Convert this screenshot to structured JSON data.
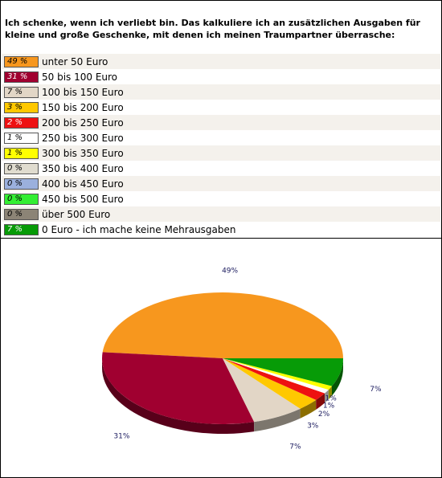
{
  "question": "Ich schenke, wenn ich verliebt bin. Das kalkuliere ich an zusätzlichen Ausgaben für kleine und große Geschenke, mit denen ich meinen Traumpartner überrasche:",
  "chart_data": {
    "type": "pie",
    "title": "",
    "categories": [
      "unter 50 Euro",
      "50 bis 100 Euro",
      "100 bis 150 Euro",
      "150 bis 200 Euro",
      "200 bis 250 Euro",
      "250 bis 300 Euro",
      "300 bis 350 Euro",
      "350 bis 400 Euro",
      "400 bis 450 Euro",
      "450 bis 500 Euro",
      "über 500 Euro",
      "0 Euro - ich mache keine Mehrausgaben"
    ],
    "values": [
      49,
      31,
      7,
      3,
      2,
      1,
      1,
      0,
      0,
      0,
      0,
      7
    ],
    "value_labels": [
      "49 %",
      "31 %",
      "7 %",
      "3 %",
      "2 %",
      "1 %",
      "1 %",
      "0 %",
      "0 %",
      "0 %",
      "0 %",
      "7 %"
    ],
    "pie_labels": [
      "49%",
      "31%",
      "7%",
      "3%",
      "2%",
      "1%",
      "1%",
      "",
      "",
      "",
      "",
      "7%"
    ],
    "colors": [
      "#f7971e",
      "#a00030",
      "#e2d6c6",
      "#ffc800",
      "#ee1111",
      "#ffffff",
      "#ffff00",
      "#e0dccf",
      "#9bb0dd",
      "#33ee33",
      "#8c8476",
      "#079b07"
    ],
    "legend_placement": "top",
    "grid": false
  }
}
